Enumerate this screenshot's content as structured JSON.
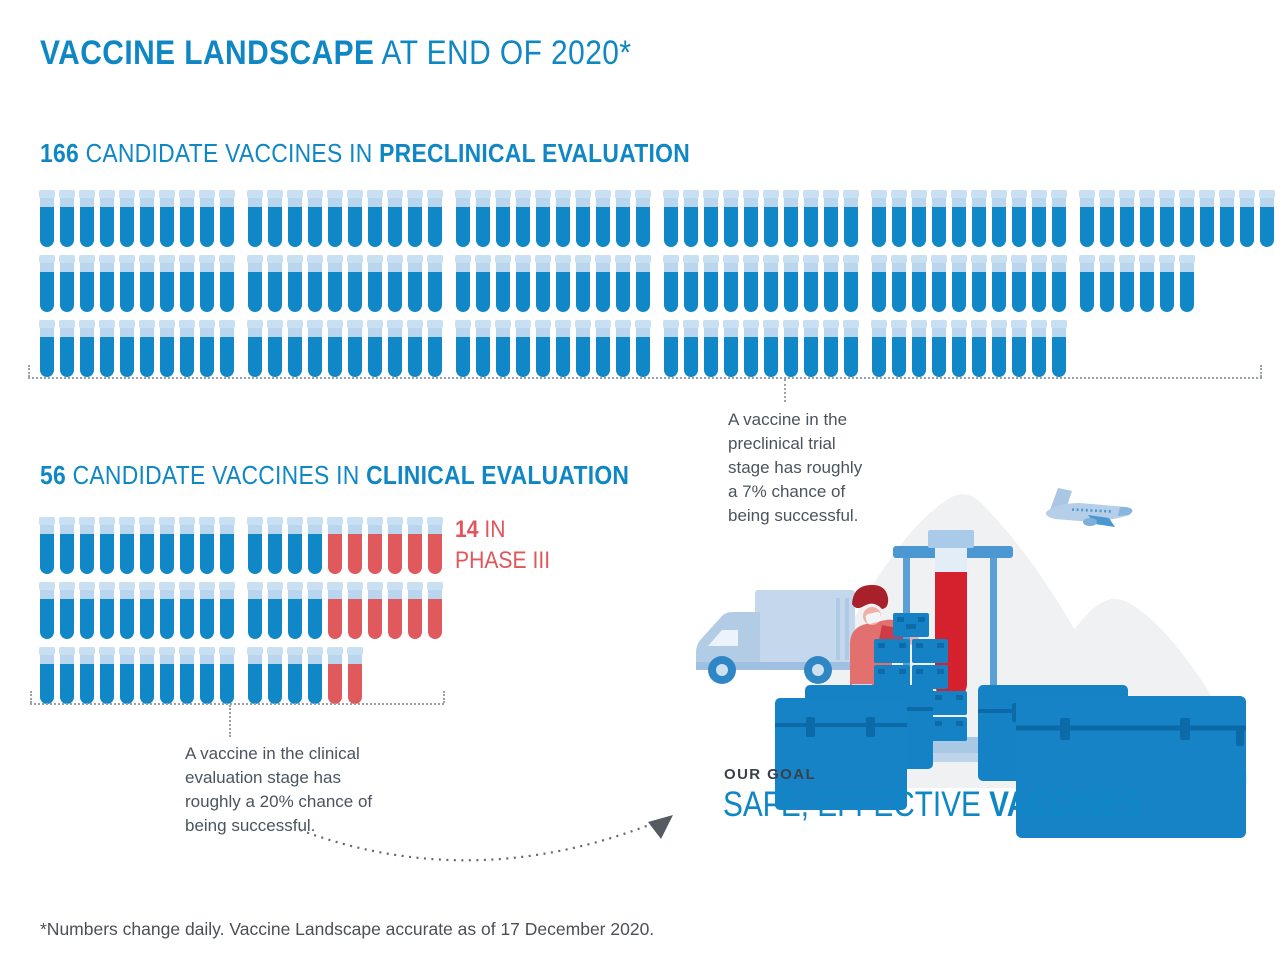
{
  "title": {
    "bold": "VACCINE LANDSCAPE",
    "light": " AT END OF 2020*"
  },
  "colors": {
    "accent_blue": "#0f87c5",
    "tube_blue": "#1088c8",
    "tube_light_blue": "#b9d6ee",
    "phase3_red": "#e0595d",
    "liquid_red": "#d5202e",
    "annotation_gray": "#4a545e",
    "footnote_gray": "#4b5056",
    "dotted_gray": "#9ca1a6",
    "crate_blue": "#1482c5",
    "illustration_light_blue": "#c4d7ec",
    "blob_gray": "#f0f1f3"
  },
  "preclinical": {
    "count": "166",
    "label_mid": " CANDIDATE VACCINES IN ",
    "label_bold": "PRECLINICAL EVALUATION",
    "rows": [
      [
        {
          "blue": 10
        },
        {
          "blue": 10
        },
        {
          "blue": 10
        },
        {
          "blue": 10
        },
        {
          "blue": 10
        },
        {
          "blue": 10
        }
      ],
      [
        {
          "blue": 10
        },
        {
          "blue": 10
        },
        {
          "blue": 10
        },
        {
          "blue": 10
        },
        {
          "blue": 10
        },
        {
          "blue": 6
        }
      ],
      [
        {
          "blue": 10
        },
        {
          "blue": 10
        },
        {
          "blue": 10
        },
        {
          "blue": 10
        },
        {
          "blue": 10
        }
      ]
    ],
    "annotation": "A vaccine in the\npreclinical trial\nstage has roughly\na 7% chance of\nbeing successful."
  },
  "clinical": {
    "count": "56",
    "label_mid": " CANDIDATE VACCINES IN ",
    "label_bold": "CLINICAL EVALUATION",
    "rows": [
      [
        {
          "blue": 10
        },
        {
          "blue": 4,
          "red": 6
        }
      ],
      [
        {
          "blue": 10
        },
        {
          "blue": 4,
          "red": 6
        }
      ],
      [
        {
          "blue": 10
        },
        {
          "blue": 4,
          "red": 2
        }
      ]
    ],
    "phase3": {
      "count": "14",
      "in_label": " IN",
      "line2": "PHASE III"
    },
    "annotation": "A vaccine in the clinical\nevaluation stage has\nroughly a 20% chance of\nbeing successful."
  },
  "goal": {
    "eyebrow": "OUR GOAL",
    "light": "SAFE, EFFECTIVE ",
    "bold": "VACCINES"
  },
  "footnote": "*Numbers change daily. Vaccine Landscape accurate as of 17 December 2020.",
  "illustration": {
    "items": [
      "delivery-truck",
      "lab-worker-with-mask",
      "vaccine-crates",
      "giant-test-tube-on-stand",
      "shipping-trunks",
      "airplane",
      "gray-hill-backdrop"
    ]
  },
  "chart_data": [
    {
      "type": "pictogram",
      "title": "166 CANDIDATE VACCINES IN PRECLINICAL EVALUATION",
      "icon": "test-tube",
      "unit_value": 1,
      "total": 166,
      "rows_of_groups": [
        [
          10,
          10,
          10,
          10,
          10,
          10
        ],
        [
          10,
          10,
          10,
          10,
          10,
          6
        ],
        [
          10,
          10,
          10,
          10,
          10
        ]
      ],
      "series": [
        {
          "name": "Preclinical evaluation",
          "value": 166,
          "color": "#1088c8"
        }
      ],
      "annotation": "A vaccine in the preclinical trial stage has roughly a 7% chance of being successful."
    },
    {
      "type": "pictogram",
      "title": "56 CANDIDATE VACCINES IN CLINICAL EVALUATION",
      "icon": "test-tube",
      "unit_value": 1,
      "total": 56,
      "rows_of_groups": [
        [
          10,
          10
        ],
        [
          10,
          10
        ],
        [
          10,
          6
        ]
      ],
      "series": [
        {
          "name": "Clinical evaluation",
          "value": 42,
          "color": "#1088c8"
        },
        {
          "name": "Phase III",
          "value": 14,
          "color": "#e0595d"
        }
      ],
      "callout": "14 IN PHASE III",
      "annotation": "A vaccine in the clinical evaluation stage has roughly a 20% chance of being successful."
    }
  ]
}
